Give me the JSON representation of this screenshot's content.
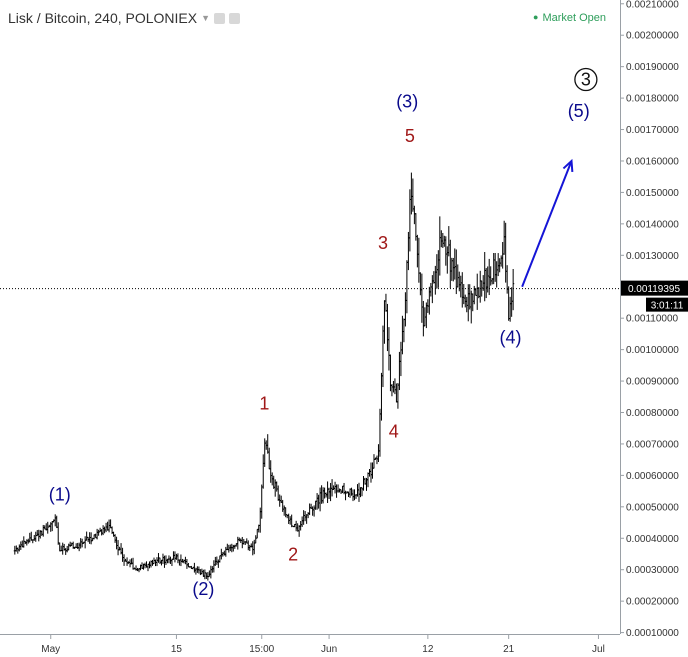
{
  "header": {
    "title": "Lisk / Bitcoin, 240, POLONIEX",
    "status": "Market Open",
    "dropdown_icon": "caret-down-icon",
    "toolbar_icons": [
      "settings-icon",
      "screenshot-icon"
    ]
  },
  "colors": {
    "candle": "#000000",
    "wave_blue": "#0a0a8c",
    "wave_red": "#a01818",
    "arrow": "#1515d6",
    "status_green": "#2e9e5b",
    "price_tag_bg": "#000000"
  },
  "chart_data": {
    "type": "candlestick",
    "price_axis": {
      "ylim": [
        9.55e-05,
        0.002112
      ],
      "ticks": [
        "0.00210000",
        "0.00200000",
        "0.00190000",
        "0.00180000",
        "0.00170000",
        "0.00160000",
        "0.00150000",
        "0.00140000",
        "0.00130000",
        "0.00120000",
        "0.00110000",
        "0.00100000",
        "0.00090000",
        "0.00080000",
        "0.00070000",
        "0.00060000",
        "0.00050000",
        "0.00040000",
        "0.00030000",
        "0.00020000",
        "0.00010000"
      ]
    },
    "time_axis": {
      "ticks": [
        {
          "label": "May",
          "day": 1
        },
        {
          "label": "15",
          "day": 15
        },
        {
          "label": "15:00",
          "day": 24.5
        },
        {
          "label": "Jun",
          "day": 32
        },
        {
          "label": "12",
          "day": 43
        },
        {
          "label": "21",
          "day": 52
        },
        {
          "label": "Jul",
          "day": 62
        }
      ]
    },
    "current_price": "0.00119395",
    "countdown": "3:01:11",
    "series": [
      {
        "x": -3,
        "y": 0.00036
      },
      {
        "x": -1,
        "y": 0.0004
      },
      {
        "x": 0.5,
        "y": 0.00043
      },
      {
        "x": 1.5,
        "y": 0.00046
      },
      {
        "x": 2,
        "y": 0.00036
      },
      {
        "x": 4,
        "y": 0.00038
      },
      {
        "x": 6,
        "y": 0.00041
      },
      {
        "x": 7.5,
        "y": 0.00044
      },
      {
        "x": 9,
        "y": 0.00034
      },
      {
        "x": 10.5,
        "y": 0.0003
      },
      {
        "x": 13,
        "y": 0.00033
      },
      {
        "x": 15,
        "y": 0.00034
      },
      {
        "x": 17,
        "y": 0.0003
      },
      {
        "x": 18.5,
        "y": 0.00028
      },
      {
        "x": 20,
        "y": 0.00035
      },
      {
        "x": 22,
        "y": 0.00039
      },
      {
        "x": 23.5,
        "y": 0.00037
      },
      {
        "x": 24.3,
        "y": 0.00046
      },
      {
        "x": 24.8,
        "y": 0.00072
      },
      {
        "x": 25.5,
        "y": 0.0006
      },
      {
        "x": 26.5,
        "y": 0.00052
      },
      {
        "x": 27.5,
        "y": 0.00046
      },
      {
        "x": 28.5,
        "y": 0.00042
      },
      {
        "x": 29.5,
        "y": 0.00048
      },
      {
        "x": 31,
        "y": 0.00053
      },
      {
        "x": 33,
        "y": 0.00056
      },
      {
        "x": 35,
        "y": 0.00054
      },
      {
        "x": 36.5,
        "y": 0.0006
      },
      {
        "x": 37.5,
        "y": 0.00068
      },
      {
        "x": 38.2,
        "y": 0.0012
      },
      {
        "x": 38.8,
        "y": 0.0009
      },
      {
        "x": 39.5,
        "y": 0.00085
      },
      {
        "x": 40.5,
        "y": 0.00115
      },
      {
        "x": 41.1,
        "y": 0.00155
      },
      {
        "x": 41.8,
        "y": 0.0013
      },
      {
        "x": 42.5,
        "y": 0.0011
      },
      {
        "x": 43.5,
        "y": 0.0012
      },
      {
        "x": 44.5,
        "y": 0.00137
      },
      {
        "x": 46,
        "y": 0.00124
      },
      {
        "x": 47.5,
        "y": 0.00115
      },
      {
        "x": 49,
        "y": 0.0012
      },
      {
        "x": 50.5,
        "y": 0.00126
      },
      {
        "x": 51.5,
        "y": 0.00134
      },
      {
        "x": 52,
        "y": 0.00111
      },
      {
        "x": 52.5,
        "y": 0.00119
      }
    ],
    "wave_labels": [
      {
        "text": "(1)",
        "x": 2,
        "y": 0.00052,
        "color": "blue"
      },
      {
        "text": "(2)",
        "x": 18,
        "y": 0.00022,
        "color": "blue"
      },
      {
        "text": "1",
        "x": 24.8,
        "y": 0.00081,
        "color": "red"
      },
      {
        "text": "2",
        "x": 28,
        "y": 0.00033,
        "color": "red"
      },
      {
        "text": "3",
        "x": 38,
        "y": 0.00132,
        "color": "red"
      },
      {
        "text": "4",
        "x": 39.2,
        "y": 0.00072,
        "color": "red"
      },
      {
        "text": "5",
        "x": 41,
        "y": 0.00166,
        "color": "red"
      },
      {
        "text": "(3)",
        "x": 40.7,
        "y": 0.00177,
        "color": "blue"
      },
      {
        "text": "(4)",
        "x": 52.2,
        "y": 0.00102,
        "color": "blue"
      },
      {
        "text": "(5)",
        "x": 59.8,
        "y": 0.00174,
        "color": "blue"
      },
      {
        "text": "3",
        "x": 60.6,
        "y": 0.00184,
        "color": "black",
        "circled": true
      }
    ],
    "projection_arrow": {
      "from": {
        "x": 53.5,
        "y": 0.0012
      },
      "to": {
        "x": 59,
        "y": 0.0016
      }
    }
  }
}
